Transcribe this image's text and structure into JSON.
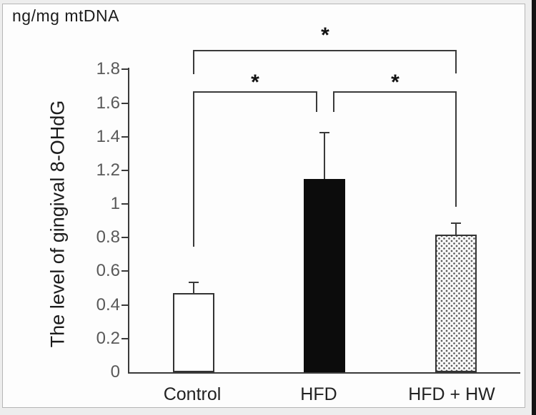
{
  "chart_data": {
    "type": "bar",
    "title": "",
    "unit_label": "ng/mg mtDNA",
    "ylabel": "The level of gingival 8-OHdG",
    "xlabel": "",
    "categories": [
      "Control",
      "HFD",
      "HFD + HW"
    ],
    "values": [
      0.47,
      1.15,
      0.82
    ],
    "error_bars": [
      0.07,
      0.28,
      0.07
    ],
    "bar_styles": [
      "white-outline",
      "solid-black",
      "dotted-pattern"
    ],
    "yticks": [
      0,
      0.2,
      0.4,
      0.6,
      0.8,
      1,
      1.2,
      1.4,
      1.6,
      1.8
    ],
    "ylim": [
      0,
      1.81
    ],
    "grid": false,
    "legend": null,
    "significance": [
      {
        "between": [
          "Control",
          "HFD"
        ],
        "label": "*"
      },
      {
        "between": [
          "HFD",
          "HFD + HW"
        ],
        "label": "*"
      },
      {
        "between": [
          "Control",
          "HFD + HW"
        ],
        "label": "*"
      }
    ]
  }
}
